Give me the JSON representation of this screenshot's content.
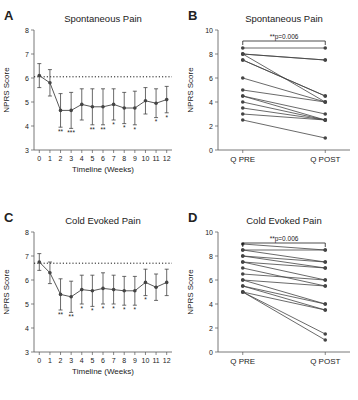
{
  "chart_data": [
    {
      "type": "line",
      "panel_label": "A",
      "title": "Spontaneous Pain",
      "x_label": "Timeline (Weeks)",
      "y_label": "NPRS Score",
      "x": [
        0,
        1,
        2,
        3,
        4,
        5,
        6,
        7,
        8,
        9,
        10,
        11,
        12
      ],
      "values": [
        6.1,
        5.8,
        4.65,
        4.65,
        4.9,
        4.8,
        4.8,
        4.9,
        4.75,
        4.75,
        5.05,
        4.95,
        5.1
      ],
      "errors": [
        0.5,
        0.55,
        0.7,
        0.75,
        0.65,
        0.75,
        0.75,
        0.65,
        0.65,
        0.7,
        0.55,
        0.6,
        0.55
      ],
      "hline": 6.05,
      "xlim": [
        -0.5,
        12.5
      ],
      "xticks": [
        0,
        1,
        2,
        3,
        4,
        5,
        6,
        7,
        8,
        9,
        10,
        11,
        12
      ],
      "ylim": [
        3,
        8
      ],
      "yticks": [
        3,
        4,
        5,
        6,
        7,
        8
      ],
      "annotations": [
        {
          "x": 2,
          "text": "**"
        },
        {
          "x": 3,
          "text": "***"
        },
        {
          "x": 5,
          "text": "**"
        },
        {
          "x": 6,
          "text": "**"
        },
        {
          "x": 7,
          "text": "*"
        },
        {
          "x": 8,
          "text": "*"
        },
        {
          "x": 9,
          "text": "*"
        },
        {
          "x": 11,
          "text": "*"
        },
        {
          "x": 12,
          "text": "*"
        }
      ],
      "color": "#444444",
      "marker": "circle",
      "line_style": "solid",
      "grid": false
    },
    {
      "type": "paired",
      "panel_label": "B",
      "title": "Spontaneous Pain",
      "y_label": "NPRS Score",
      "categories": [
        "Q PRE",
        "Q POST"
      ],
      "series": [
        {
          "values": [
            8.5,
            8.5
          ]
        },
        {
          "values": [
            8.0,
            7.5
          ]
        },
        {
          "values": [
            8.0,
            7.5
          ]
        },
        {
          "values": [
            8.0,
            4.0
          ]
        },
        {
          "values": [
            7.5,
            4.5
          ]
        },
        {
          "values": [
            7.5,
            4.5
          ]
        },
        {
          "values": [
            6.0,
            4.0
          ]
        },
        {
          "values": [
            5.0,
            4.0
          ]
        },
        {
          "values": [
            4.5,
            3.0
          ]
        },
        {
          "values": [
            4.5,
            2.5
          ]
        },
        {
          "values": [
            4.0,
            2.5
          ]
        },
        {
          "values": [
            3.5,
            2.5
          ]
        },
        {
          "values": [
            3.0,
            2.5
          ]
        },
        {
          "values": [
            2.5,
            1.0
          ]
        }
      ],
      "ylim": [
        0,
        10
      ],
      "yticks": [
        0,
        2,
        4,
        6,
        8,
        10
      ],
      "annotation": "**p=0.006",
      "color": "#444444",
      "marker": "circle",
      "line_style": "solid",
      "grid": false
    },
    {
      "type": "line",
      "panel_label": "C",
      "title": "Cold Evoked Pain",
      "x_label": "Timeline (Weeks)",
      "y_label": "NPRS Score",
      "x": [
        0,
        1,
        2,
        3,
        4,
        5,
        6,
        7,
        8,
        9,
        10,
        11,
        12
      ],
      "values": [
        6.75,
        6.3,
        5.4,
        5.3,
        5.6,
        5.55,
        5.65,
        5.6,
        5.55,
        5.55,
        5.9,
        5.7,
        5.9
      ],
      "errors": [
        0.35,
        0.45,
        0.65,
        0.65,
        0.6,
        0.65,
        0.65,
        0.6,
        0.6,
        0.6,
        0.55,
        0.55,
        0.55
      ],
      "hline": 6.7,
      "xlim": [
        -0.5,
        12.5
      ],
      "xticks": [
        0,
        1,
        2,
        3,
        4,
        5,
        6,
        7,
        8,
        9,
        10,
        11,
        12
      ],
      "ylim": [
        3,
        8
      ],
      "yticks": [
        3,
        4,
        5,
        6,
        7,
        8
      ],
      "annotations": [
        {
          "x": 2,
          "text": "**"
        },
        {
          "x": 3,
          "text": "**"
        },
        {
          "x": 4,
          "text": "*"
        },
        {
          "x": 5,
          "text": "*"
        },
        {
          "x": 6,
          "text": "*"
        },
        {
          "x": 7,
          "text": "*"
        },
        {
          "x": 8,
          "text": "*"
        },
        {
          "x": 9,
          "text": "*"
        },
        {
          "x": 10,
          "text": "*"
        }
      ],
      "color": "#444444",
      "marker": "circle",
      "line_style": "solid",
      "grid": false
    },
    {
      "type": "paired",
      "panel_label": "D",
      "title": "Cold Evoked Pain",
      "y_label": "NPRS Score",
      "categories": [
        "Q PRE",
        "Q POST"
      ],
      "series": [
        {
          "values": [
            9.0,
            8.5
          ]
        },
        {
          "values": [
            8.5,
            8.5
          ]
        },
        {
          "values": [
            8.5,
            7.5
          ]
        },
        {
          "values": [
            8.0,
            7.5
          ]
        },
        {
          "values": [
            8.0,
            7.0
          ]
        },
        {
          "values": [
            7.5,
            7.0
          ]
        },
        {
          "values": [
            7.5,
            6.0
          ]
        },
        {
          "values": [
            7.0,
            5.5
          ]
        },
        {
          "values": [
            6.5,
            6.0
          ]
        },
        {
          "values": [
            6.0,
            5.5
          ]
        },
        {
          "values": [
            6.0,
            4.0
          ]
        },
        {
          "values": [
            5.5,
            4.0
          ]
        },
        {
          "values": [
            5.5,
            3.5
          ]
        },
        {
          "values": [
            5.0,
            3.5
          ]
        },
        {
          "values": [
            5.0,
            1.5
          ]
        },
        {
          "values": [
            5.0,
            1.0
          ]
        }
      ],
      "ylim": [
        0,
        10
      ],
      "yticks": [
        0,
        2,
        4,
        6,
        8,
        10
      ],
      "annotation": "**p=0.006",
      "color": "#444444",
      "marker": "circle",
      "line_style": "solid",
      "grid": false
    }
  ]
}
